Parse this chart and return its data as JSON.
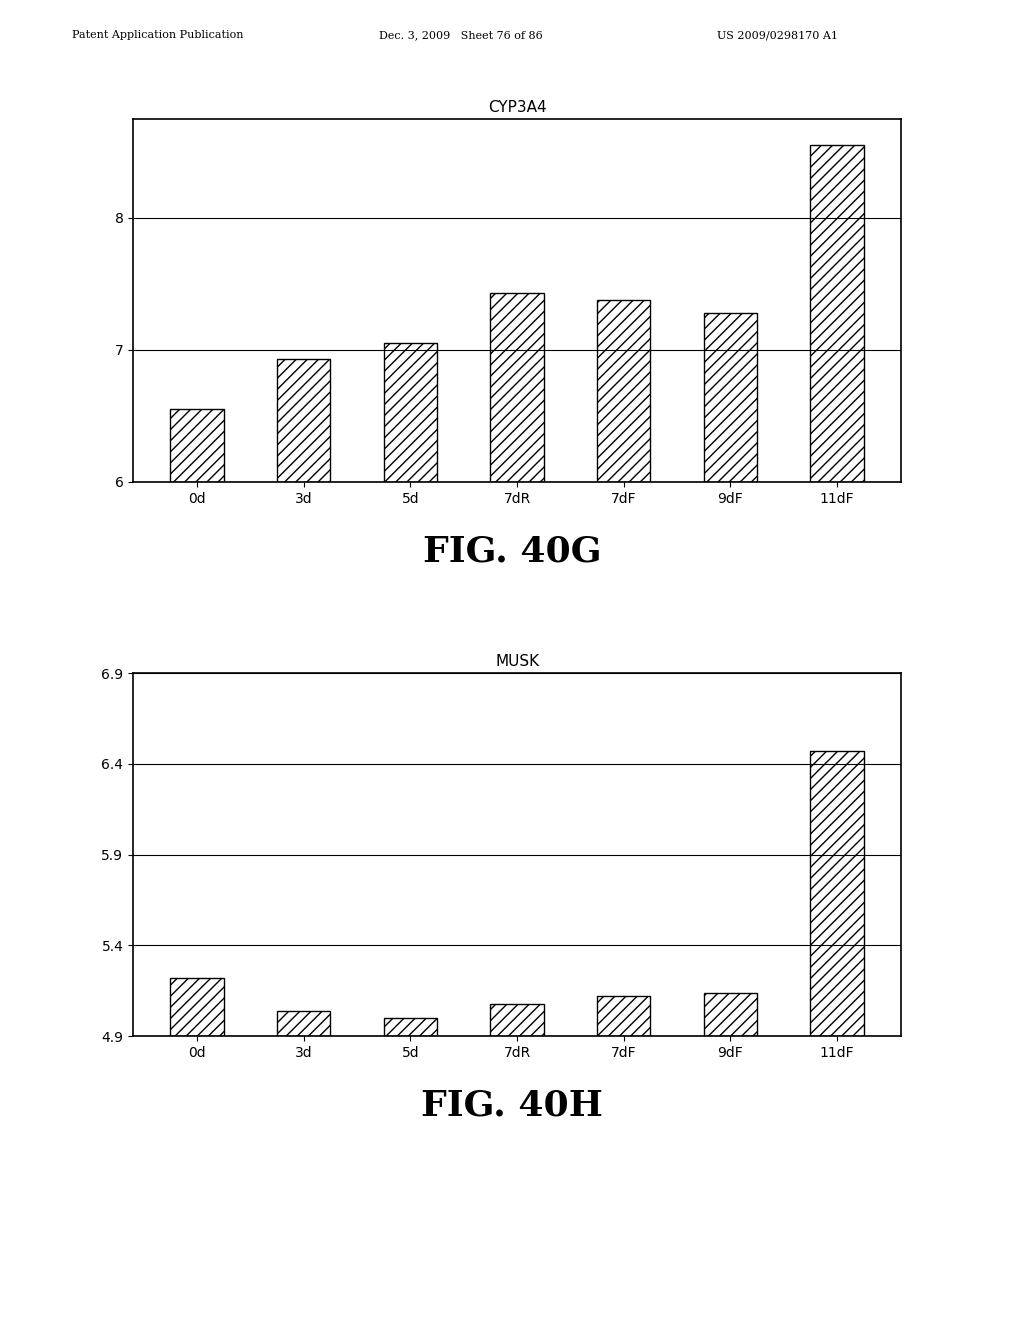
{
  "chart1": {
    "title": "CYP3A4",
    "categories": [
      "0d",
      "3d",
      "5d",
      "7dR",
      "7dF",
      "9dF",
      "11dF"
    ],
    "values": [
      6.55,
      6.93,
      7.05,
      7.43,
      7.38,
      7.28,
      8.55
    ],
    "ylim": [
      6.0,
      8.75
    ],
    "yticks": [
      6,
      7,
      8
    ],
    "fig_label": "FIG. 40G"
  },
  "chart2": {
    "title": "MUSK",
    "categories": [
      "0d",
      "3d",
      "5d",
      "7dR",
      "7dF",
      "9dF",
      "11dF"
    ],
    "values": [
      5.22,
      5.04,
      5.0,
      5.08,
      5.12,
      5.14,
      6.47
    ],
    "ylim": [
      4.9,
      6.9
    ],
    "yticks": [
      4.9,
      5.4,
      5.9,
      6.4,
      6.9
    ],
    "fig_label": "FIG. 40H"
  },
  "bar_color": "#ffffff",
  "bar_edgecolor": "#000000",
  "hatch": "///",
  "background_color": "#ffffff",
  "fig_label_fontsize": 26,
  "title_fontsize": 11,
  "tick_fontsize": 10,
  "bar_width": 0.5,
  "header_left": "Patent Application Publication",
  "header_mid": "Dec. 3, 2009   Sheet 76 of 86",
  "header_right": "US 2009/0298170 A1"
}
